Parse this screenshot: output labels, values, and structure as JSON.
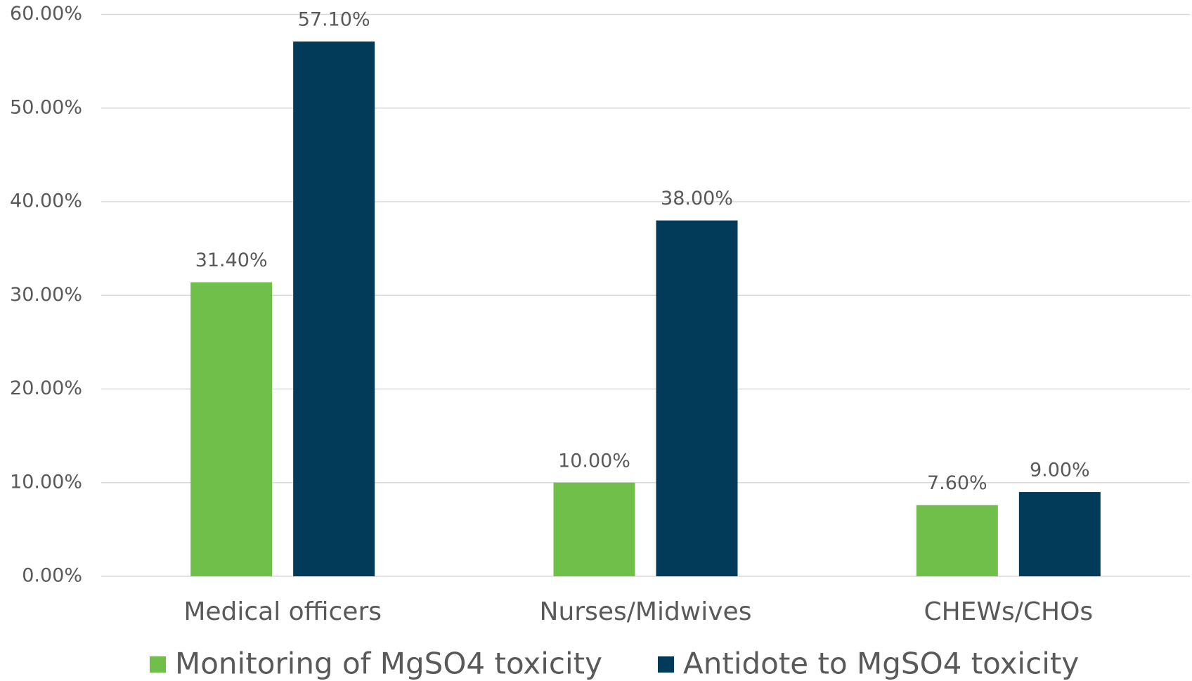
{
  "chart_data": {
    "type": "bar",
    "categories": [
      "Medical officers",
      "Nurses/Midwives",
      "CHEWs/CHOs"
    ],
    "series": [
      {
        "name": "Monitoring of MgSO4 toxicity",
        "color": "#70bf4b",
        "values": [
          31.4,
          10,
          7.6
        ],
        "value_labels": [
          "31.40%",
          "10.00%",
          "7.60%"
        ]
      },
      {
        "name": "Antidote to MgSO4 toxicity",
        "color": "#023a5a",
        "values": [
          57.1,
          38,
          9
        ],
        "value_labels": [
          "57.10%",
          "38.00%",
          "9.00%"
        ]
      }
    ],
    "ylim": [
      0,
      60
    ],
    "yticks": [
      {
        "value": 0,
        "label": "0.00%"
      },
      {
        "value": 10,
        "label": "10.00%"
      },
      {
        "value": 20,
        "label": "20.00%"
      },
      {
        "value": 30,
        "label": "30.00%"
      },
      {
        "value": 40,
        "label": "40.00%"
      },
      {
        "value": 50,
        "label": "50.00%"
      },
      {
        "value": 60,
        "label": "60.00%"
      }
    ],
    "grid": true,
    "legend": "bottom"
  }
}
